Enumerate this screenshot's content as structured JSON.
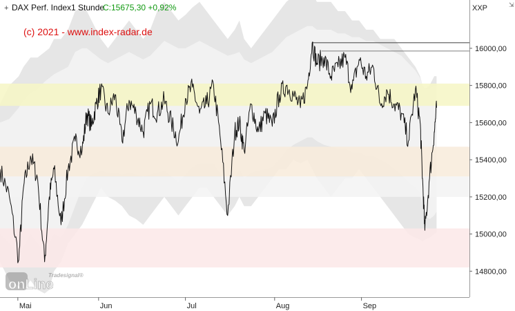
{
  "header": {
    "instrument": "DAX Perf. Index",
    "interval": "1 Stunde",
    "close_text": "C:15675,30 +0,92%",
    "close_color": "#119911",
    "corner_label": "XXP",
    "corner_marker": "⇲"
  },
  "copyright": "(c) 2021 - www.index-radar.de",
  "logo": {
    "small": "Tradesignal®",
    "main": "onLine"
  },
  "colors": {
    "price": "#111111",
    "outer_band": "#e6e6e6",
    "inner_band": "#f2f2f2",
    "zone_yellow": "#f6f6c4",
    "zone_orange": "#f8ebdb",
    "zone_grey": "#f3f3f3",
    "zone_pink": "#fbe8e8",
    "reference_line": "#555555",
    "axis": "#999999"
  },
  "chart_data": {
    "type": "line",
    "title": "DAX Perf. Index",
    "ylim": [
      14660,
      16260
    ],
    "x_ticks": [
      "Mai",
      "Jun",
      "Jul",
      "Aug",
      "Sep"
    ],
    "y_ticks": [
      "14800,00",
      "15000,00",
      "15200,00",
      "15400,00",
      "15600,00",
      "15800,00",
      "16000,00"
    ],
    "y_tick_values": [
      14800,
      15000,
      15200,
      15400,
      15600,
      15800,
      16000
    ],
    "zones": [
      {
        "from": 15690,
        "to": 15810,
        "color_key": "zone_yellow"
      },
      {
        "from": 15310,
        "to": 15470,
        "color_key": "zone_orange"
      },
      {
        "from": 15200,
        "to": 15310,
        "color_key": "zone_grey"
      },
      {
        "from": 14820,
        "to": 15030,
        "color_key": "zone_pink"
      }
    ],
    "reference_lines": [
      {
        "value": 16030,
        "x_start": 0.665
      },
      {
        "value": 15985,
        "x_start": 0.685
      }
    ],
    "series": [
      {
        "x": [
          0.0,
          0.02,
          0.04,
          0.05,
          0.065,
          0.08,
          0.095,
          0.105,
          0.115,
          0.13,
          0.145,
          0.16,
          0.175,
          0.185,
          0.195,
          0.205,
          0.215,
          0.23,
          0.245,
          0.26,
          0.275,
          0.29,
          0.305,
          0.32,
          0.335,
          0.35,
          0.365,
          0.38,
          0.395,
          0.41,
          0.425,
          0.44,
          0.455,
          0.47,
          0.485,
          0.5,
          0.51,
          0.52,
          0.535,
          0.55,
          0.565,
          0.58,
          0.595,
          0.61,
          0.625,
          0.64,
          0.655,
          0.665,
          0.675,
          0.69,
          0.705,
          0.72,
          0.735,
          0.75,
          0.765,
          0.78,
          0.795,
          0.81,
          0.825,
          0.84,
          0.855,
          0.87,
          0.885,
          0.895,
          0.9,
          0.905,
          0.915,
          0.925,
          0.93
        ],
        "values": [
          15350,
          15200,
          14860,
          15250,
          15420,
          15300,
          14850,
          15200,
          15350,
          15050,
          15350,
          15500,
          15450,
          15650,
          15580,
          15700,
          15780,
          15650,
          15750,
          15500,
          15720,
          15650,
          15550,
          15700,
          15650,
          15720,
          15600,
          15500,
          15730,
          15790,
          15650,
          15700,
          15800,
          15500,
          15100,
          15550,
          15600,
          15450,
          15700,
          15550,
          15650,
          15580,
          15750,
          15800,
          15750,
          15680,
          15800,
          16030,
          15920,
          15950,
          15850,
          15900,
          15950,
          15780,
          15940,
          15850,
          15900,
          15700,
          15770,
          15700,
          15650,
          15500,
          15780,
          15600,
          15300,
          15020,
          15300,
          15550,
          15680
        ]
      }
    ],
    "bands": {
      "outer_upper": [
        15700,
        15800,
        15850,
        15900,
        15950,
        15950,
        15980,
        16000,
        16050,
        16050,
        16100,
        16200,
        16220,
        16200,
        16150,
        16100,
        16050,
        16000,
        16050,
        16100,
        16150,
        16100,
        16050,
        16100,
        16200,
        16250,
        16200,
        16150,
        16180,
        16220,
        16250,
        16200,
        16150,
        16100,
        16050,
        16100,
        16150,
        16050,
        16000,
        16050,
        16100,
        16150,
        16200,
        16250,
        16280,
        16300,
        16320,
        16300,
        16250,
        16250,
        16250,
        16200,
        16200,
        16150,
        16150,
        16100,
        16100,
        16050,
        16050,
        16050,
        16000,
        15950,
        15900,
        15850,
        15800,
        15780,
        15800,
        15850,
        15850
      ],
      "inner_upper": [
        15600,
        15620,
        15680,
        15720,
        15760,
        15780,
        15820,
        15840,
        15860,
        15880,
        15900,
        15980,
        16000,
        16000,
        15980,
        15960,
        15940,
        15920,
        15940,
        15960,
        15980,
        15960,
        15940,
        15960,
        16000,
        16040,
        16020,
        16000,
        16000,
        16020,
        16040,
        16020,
        16000,
        15980,
        15960,
        15970,
        15980,
        15940,
        15920,
        15940,
        15960,
        15980,
        16020,
        16060,
        16080,
        16100,
        16120,
        16120,
        16100,
        16100,
        16100,
        16080,
        16080,
        16060,
        16060,
        16040,
        16040,
        16020,
        16000,
        15980,
        15960,
        15920,
        15880,
        15840,
        15800,
        15780,
        15780,
        15800,
        15800
      ],
      "inner_lower": [
        15000,
        14950,
        14900,
        14930,
        15000,
        14950,
        14900,
        14950,
        15000,
        14980,
        15050,
        15150,
        15250,
        15300,
        15320,
        15330,
        15340,
        15330,
        15330,
        15320,
        15330,
        15320,
        15310,
        15320,
        15330,
        15340,
        15310,
        15280,
        15320,
        15360,
        15380,
        15380,
        15380,
        15320,
        15250,
        15300,
        15350,
        15300,
        15330,
        15340,
        15350,
        15360,
        15400,
        15450,
        15480,
        15500,
        15520,
        15520,
        15500,
        15480,
        15470,
        15460,
        15460,
        15440,
        15440,
        15420,
        15420,
        15400,
        15380,
        15350,
        15320,
        15280,
        15250,
        15220,
        15150,
        15100,
        15080,
        15100,
        15120
      ],
      "outer_lower": [
        14850,
        14750,
        14720,
        14700,
        14750,
        14700,
        14680,
        14700,
        14800,
        14850,
        14950,
        15000,
        15050,
        15100,
        15150,
        15200,
        15250,
        15200,
        15180,
        15150,
        15100,
        15080,
        15050,
        15100,
        15150,
        15200,
        15150,
        15100,
        15150,
        15200,
        15250,
        15250,
        15200,
        15150,
        15100,
        15150,
        15200,
        15150,
        15150,
        15200,
        15250,
        15300,
        15350,
        15350,
        15400,
        15380,
        15400,
        15350,
        15300,
        15250,
        15200,
        15250,
        15300,
        15300,
        15350,
        15300,
        15250,
        15200,
        15150,
        15100,
        15050,
        15000,
        14980,
        14970,
        14960,
        14970,
        14980,
        15000,
        15010
      ]
    }
  }
}
